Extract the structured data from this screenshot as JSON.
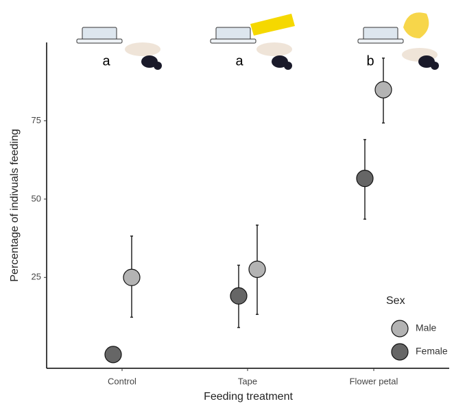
{
  "chart_data": {
    "type": "dot-errorbar",
    "x_label": "Feeding treatment",
    "y_label": "Percentage of indivuals feeding",
    "categories": [
      "Control",
      "Tape",
      "Flower petal"
    ],
    "annotations": [
      "a",
      "a",
      "b"
    ],
    "ylim": [
      -4,
      100
    ],
    "yticks": [
      25,
      50,
      75
    ],
    "grid": false,
    "legend_title": "Sex",
    "legend_position": "right",
    "series": [
      {
        "name": "Male",
        "color": "#b3b3b3",
        "values": [
          25,
          27.6,
          84.9
        ],
        "lower": [
          12.3,
          13.2,
          74.3
        ],
        "upper": [
          38.2,
          41.7,
          95
        ]
      },
      {
        "name": "Female",
        "color": "#666666",
        "values": [
          0.4,
          19.1,
          56.6
        ],
        "lower": [
          null,
          9,
          43.6
        ],
        "upper": [
          null,
          28.9,
          69
        ]
      }
    ]
  }
}
